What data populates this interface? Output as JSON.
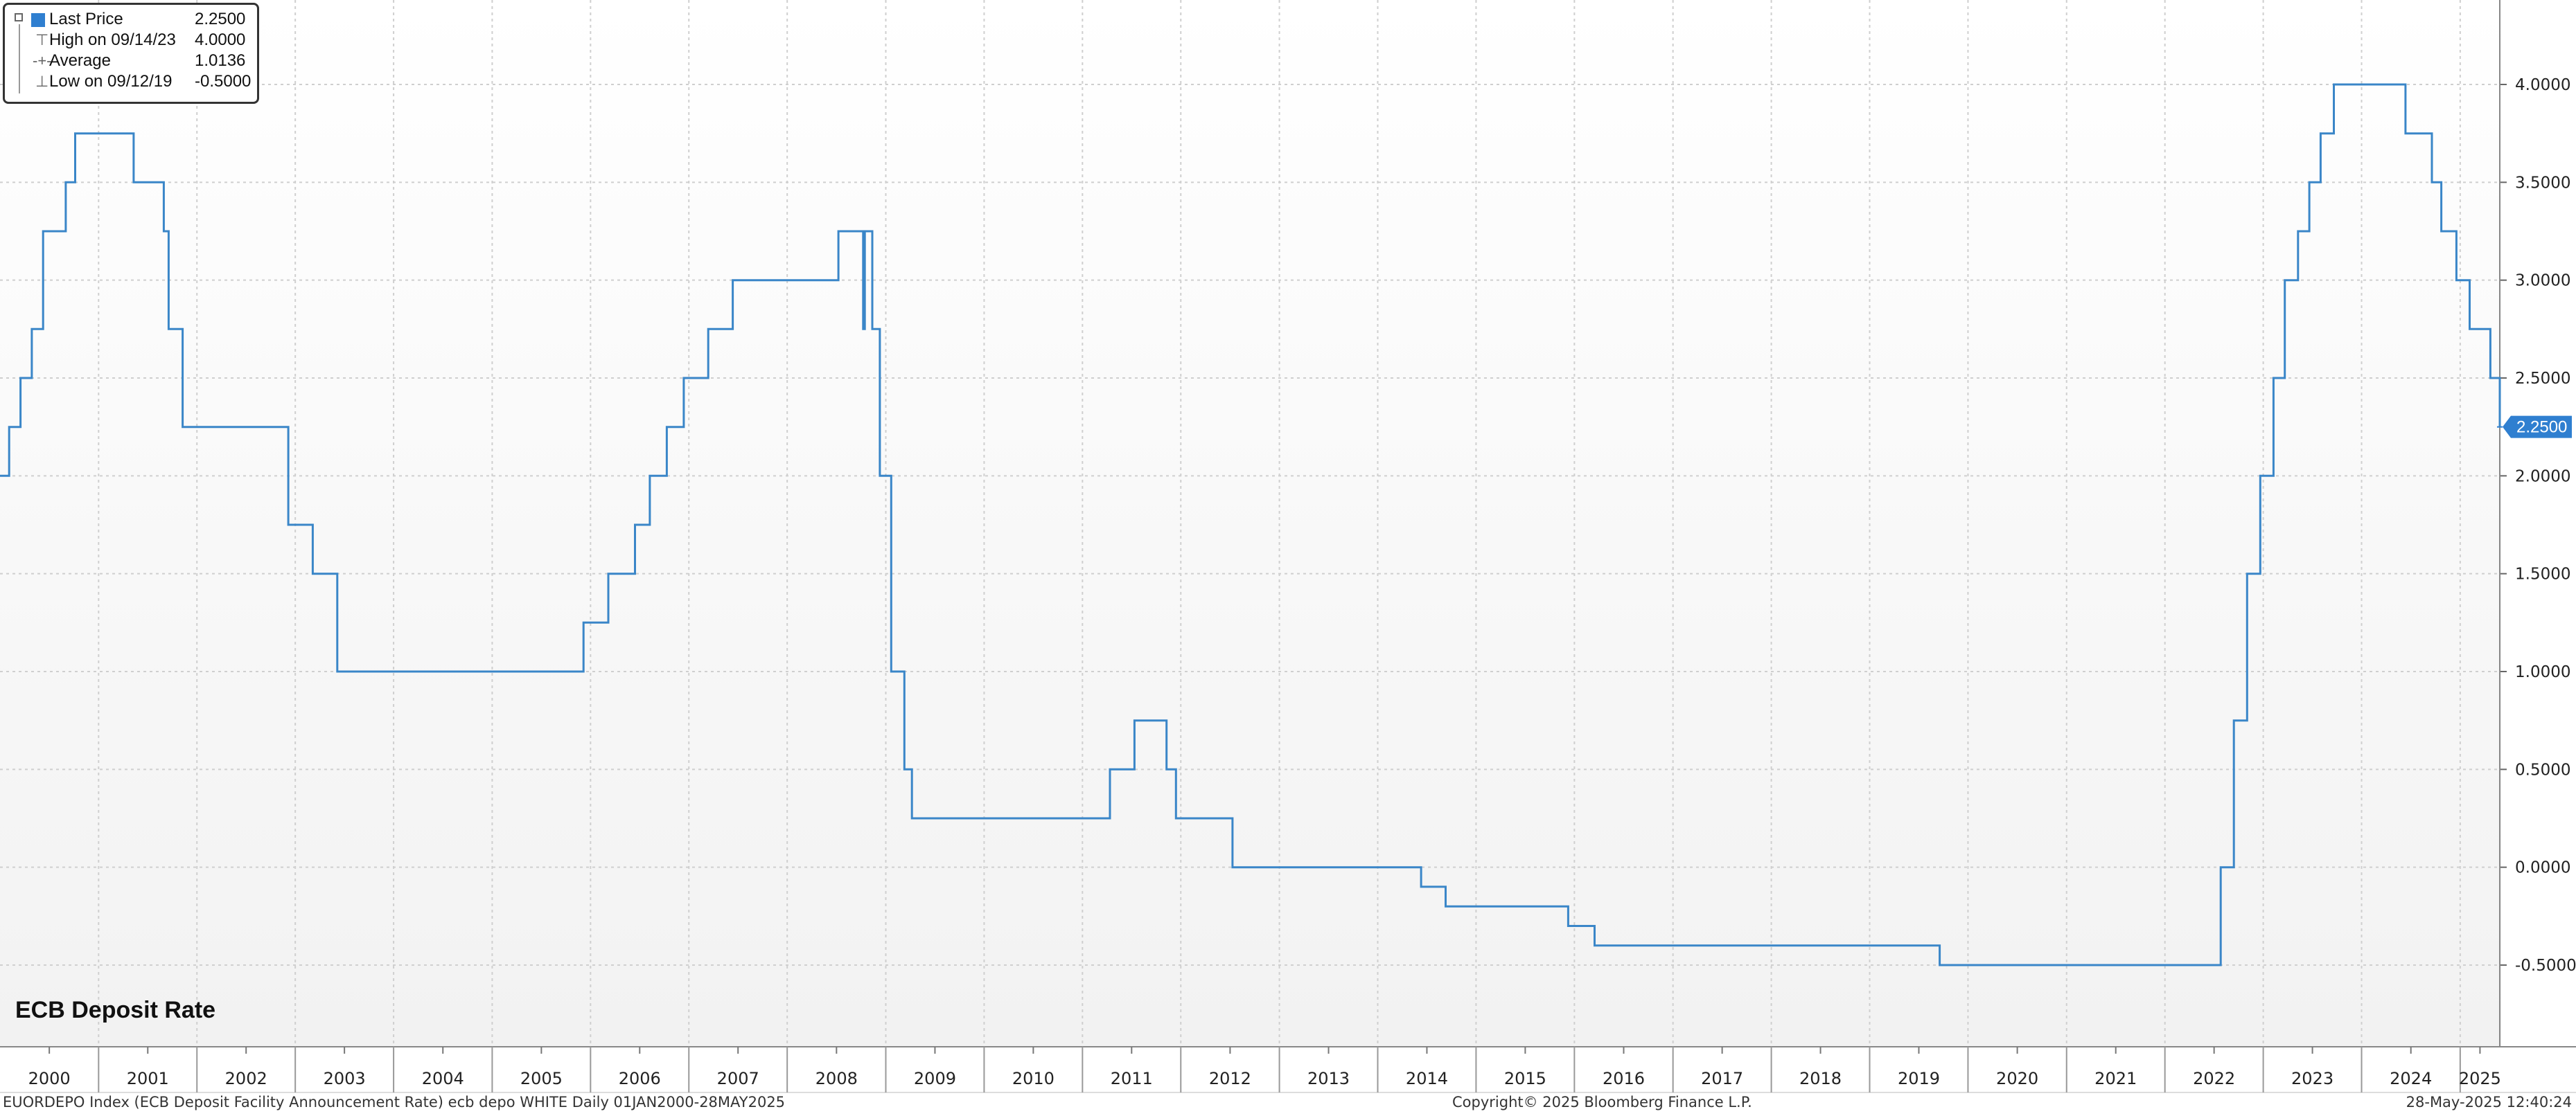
{
  "legend": {
    "items": [
      {
        "label": "Last Price",
        "value": "2.2500"
      },
      {
        "label": "High on 09/14/23",
        "value": "4.0000"
      },
      {
        "label": "Average",
        "value": "1.0136"
      },
      {
        "label": "Low on 09/12/19",
        "value": "-0.5000"
      }
    ]
  },
  "chart_title": "ECB Deposit Rate",
  "last_value_label": "2.2500",
  "footer": {
    "left": "EUORDEPO Index (ECB Deposit Facility Announcement Rate) ecb depo WHITE  Daily 01JAN2000-28MAY2025",
    "center": "Copyright© 2025 Bloomberg Finance L.P.",
    "right": "28-May-2025 12:40:24"
  },
  "colors": {
    "series": "#3a86c8",
    "badge": "#2f7fd0",
    "grid": "#cfcfcf"
  },
  "chart_data": {
    "type": "line",
    "title": "ECB Deposit Rate",
    "xlabel": "",
    "ylabel": "",
    "ylim": [
      -0.9,
      4.4
    ],
    "xlim": [
      "2000-01-01",
      "2025-05-28"
    ],
    "y_ticks": [
      "4.0000",
      "3.5000",
      "3.0000",
      "2.5000",
      "2.0000",
      "1.5000",
      "1.0000",
      "0.5000",
      "0.0000",
      "-0.5000"
    ],
    "x_ticks": [
      "2000",
      "2001",
      "2002",
      "2003",
      "2004",
      "2005",
      "2006",
      "2007",
      "2008",
      "2009",
      "2010",
      "2011",
      "2012",
      "2013",
      "2014",
      "2015",
      "2016",
      "2017",
      "2018",
      "2019",
      "2020",
      "2021",
      "2022",
      "2023",
      "2024",
      "2025"
    ],
    "grid": true,
    "step": true,
    "series": [
      {
        "values": [
          [
            "2000-01-01",
            2.0
          ],
          [
            "2000-02-04",
            2.25
          ],
          [
            "2000-03-17",
            2.5
          ],
          [
            "2000-04-28",
            2.75
          ],
          [
            "2000-06-09",
            3.25
          ],
          [
            "2000-09-01",
            3.5
          ],
          [
            "2000-10-06",
            3.75
          ],
          [
            "2001-05-11",
            3.5
          ],
          [
            "2001-08-31",
            3.25
          ],
          [
            "2001-09-18",
            2.75
          ],
          [
            "2001-11-09",
            2.25
          ],
          [
            "2002-12-06",
            1.75
          ],
          [
            "2003-03-07",
            1.5
          ],
          [
            "2003-06-06",
            1.0
          ],
          [
            "2005-12-06",
            1.25
          ],
          [
            "2006-03-08",
            1.5
          ],
          [
            "2006-06-15",
            1.75
          ],
          [
            "2006-08-09",
            2.0
          ],
          [
            "2006-10-11",
            2.25
          ],
          [
            "2006-12-13",
            2.5
          ],
          [
            "2007-03-14",
            2.75
          ],
          [
            "2007-06-13",
            3.0
          ],
          [
            "2008-07-09",
            3.25
          ],
          [
            "2008-10-09",
            2.75
          ],
          [
            "2008-10-15",
            3.25
          ],
          [
            "2008-11-12",
            2.75
          ],
          [
            "2008-12-10",
            2.0
          ],
          [
            "2009-01-21",
            1.0
          ],
          [
            "2009-03-11",
            0.5
          ],
          [
            "2009-04-08",
            0.25
          ],
          [
            "2011-04-13",
            0.5
          ],
          [
            "2011-07-13",
            0.75
          ],
          [
            "2011-11-09",
            0.5
          ],
          [
            "2011-12-14",
            0.25
          ],
          [
            "2012-07-11",
            0.0
          ],
          [
            "2014-06-11",
            -0.1
          ],
          [
            "2014-09-10",
            -0.2
          ],
          [
            "2015-12-09",
            -0.3
          ],
          [
            "2016-03-16",
            -0.4
          ],
          [
            "2019-09-18",
            -0.5
          ],
          [
            "2022-07-27",
            0.0
          ],
          [
            "2022-09-14",
            0.75
          ],
          [
            "2022-11-02",
            1.5
          ],
          [
            "2022-12-21",
            2.0
          ],
          [
            "2023-02-08",
            2.5
          ],
          [
            "2023-03-22",
            3.0
          ],
          [
            "2023-05-10",
            3.25
          ],
          [
            "2023-06-21",
            3.5
          ],
          [
            "2023-08-02",
            3.75
          ],
          [
            "2023-09-20",
            4.0
          ],
          [
            "2024-06-12",
            3.75
          ],
          [
            "2024-09-18",
            3.5
          ],
          [
            "2024-10-23",
            3.25
          ],
          [
            "2024-12-18",
            3.0
          ],
          [
            "2025-02-05",
            2.75
          ],
          [
            "2025-04-23",
            2.5
          ],
          [
            "2025-05-28",
            2.25
          ]
        ]
      }
    ]
  }
}
